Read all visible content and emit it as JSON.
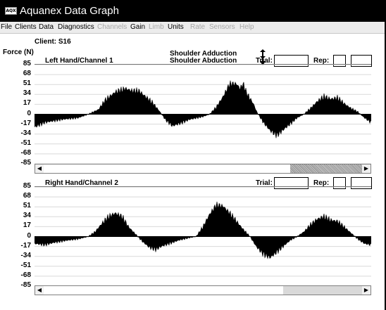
{
  "window": {
    "title": "Aquanex Data Graph",
    "icon": "aquanex-app-icon"
  },
  "menu": [
    {
      "label": "File",
      "enabled": true
    },
    {
      "label": "Clients",
      "enabled": true
    },
    {
      "label": "Data",
      "enabled": true
    },
    {
      "label": "Diagnostics",
      "enabled": true
    },
    {
      "label": "Channels",
      "enabled": false
    },
    {
      "label": "Gain",
      "enabled": true
    },
    {
      "label": "Limb",
      "enabled": false
    },
    {
      "label": "Units",
      "enabled": true
    },
    {
      "label": "Rate",
      "enabled": false
    },
    {
      "label": "Sensors",
      "enabled": false
    },
    {
      "label": "Help",
      "enabled": false
    }
  ],
  "client_label": "Client: S16",
  "force_label": "Force (N)",
  "legend": {
    "adduction": "Shoulder Adduction",
    "abduction": "Shoulder Abduction",
    "adduction_icon": "up-down-arrow-icon",
    "abduction_icon": "up-down-arrow-icon"
  },
  "trial_label": "Trial:",
  "rep_label": "Rep:",
  "colors": {
    "fill": "#000000",
    "grid": "#d9d9d9",
    "disabled_menu": "#a7a7a7"
  },
  "chart_data": [
    {
      "type": "area",
      "title": "Left Hand/Channel 1",
      "ylabel": "Force (N)",
      "ylim": [
        -85,
        85
      ],
      "yticks": [
        "85",
        "68",
        "51",
        "34",
        "17",
        "0",
        "-17",
        "-34",
        "-51",
        "-68",
        "-85"
      ],
      "grid": true,
      "scroll_position": 0.85,
      "x": [
        0,
        5,
        10,
        15,
        20,
        25,
        30,
        35,
        40,
        45,
        50,
        55,
        60,
        65,
        70,
        75,
        80,
        85,
        90,
        95,
        100
      ],
      "values": [
        -22,
        -12,
        -9,
        -5,
        0,
        26,
        44,
        36,
        6,
        -18,
        -10,
        -3,
        22,
        55,
        42,
        6,
        -24,
        -32,
        -12,
        2,
        -9
      ],
      "keypoints": [
        [
          0,
          -22
        ],
        [
          3,
          -14
        ],
        [
          8,
          -9
        ],
        [
          13,
          -6
        ],
        [
          16,
          0
        ],
        [
          19,
          8
        ],
        [
          21,
          24
        ],
        [
          24,
          38
        ],
        [
          27,
          44
        ],
        [
          29,
          40
        ],
        [
          31,
          40
        ],
        [
          33,
          30
        ],
        [
          35,
          20
        ],
        [
          37,
          6
        ],
        [
          39,
          -10
        ],
        [
          41,
          -20
        ],
        [
          43,
          -16
        ],
        [
          46,
          -9
        ],
        [
          50,
          -4
        ],
        [
          52,
          0
        ],
        [
          54,
          12
        ],
        [
          56,
          30
        ],
        [
          58,
          52
        ],
        [
          60,
          52
        ],
        [
          61,
          44
        ],
        [
          62,
          52
        ],
        [
          63,
          36
        ],
        [
          65,
          18
        ],
        [
          66,
          4
        ],
        [
          68,
          -14
        ],
        [
          70,
          -28
        ],
        [
          72,
          -36
        ],
        [
          74,
          -26
        ],
        [
          76,
          -16
        ],
        [
          78,
          -6
        ],
        [
          80,
          0
        ],
        [
          82,
          10
        ],
        [
          84,
          22
        ],
        [
          86,
          30
        ],
        [
          88,
          26
        ],
        [
          90,
          28
        ],
        [
          92,
          18
        ],
        [
          94,
          10
        ],
        [
          96,
          4
        ],
        [
          98,
          -6
        ],
        [
          100,
          -14
        ]
      ]
    },
    {
      "type": "area",
      "title": "Right Hand/Channel 2",
      "ylabel": "Force (N)",
      "ylim": [
        -85,
        85
      ],
      "yticks": [
        "85",
        "68",
        "51",
        "34",
        "17",
        "0",
        "-17",
        "-34",
        "-51",
        "-68",
        "-85"
      ],
      "grid": true,
      "scroll_position": 0.75,
      "x": [
        0,
        5,
        10,
        15,
        20,
        25,
        30,
        35,
        40,
        45,
        50,
        55,
        60,
        65,
        70,
        75,
        80,
        85,
        90,
        95,
        100
      ],
      "values": [
        -12,
        -12,
        -6,
        -2,
        0,
        24,
        42,
        18,
        -10,
        -20,
        -6,
        2,
        44,
        54,
        12,
        -28,
        -26,
        -6,
        16,
        28,
        -8
      ],
      "keypoints": [
        [
          0,
          -12
        ],
        [
          3,
          -14
        ],
        [
          6,
          -10
        ],
        [
          9,
          -7
        ],
        [
          13,
          -4
        ],
        [
          16,
          0
        ],
        [
          18,
          8
        ],
        [
          20,
          22
        ],
        [
          22,
          34
        ],
        [
          24,
          40
        ],
        [
          26,
          34
        ],
        [
          28,
          16
        ],
        [
          30,
          4
        ],
        [
          32,
          -8
        ],
        [
          34,
          -18
        ],
        [
          36,
          -22
        ],
        [
          38,
          -16
        ],
        [
          40,
          -12
        ],
        [
          43,
          -6
        ],
        [
          46,
          -2
        ],
        [
          48,
          0
        ],
        [
          50,
          16
        ],
        [
          52,
          38
        ],
        [
          54,
          54
        ],
        [
          56,
          52
        ],
        [
          58,
          40
        ],
        [
          60,
          26
        ],
        [
          62,
          12
        ],
        [
          64,
          0
        ],
        [
          66,
          -18
        ],
        [
          68,
          -30
        ],
        [
          70,
          -36
        ],
        [
          72,
          -26
        ],
        [
          74,
          -16
        ],
        [
          76,
          -6
        ],
        [
          78,
          0
        ],
        [
          80,
          8
        ],
        [
          82,
          20
        ],
        [
          84,
          30
        ],
        [
          86,
          34
        ],
        [
          88,
          28
        ],
        [
          90,
          26
        ],
        [
          92,
          16
        ],
        [
          94,
          6
        ],
        [
          96,
          -4
        ],
        [
          98,
          -12
        ],
        [
          100,
          -14
        ]
      ]
    }
  ]
}
